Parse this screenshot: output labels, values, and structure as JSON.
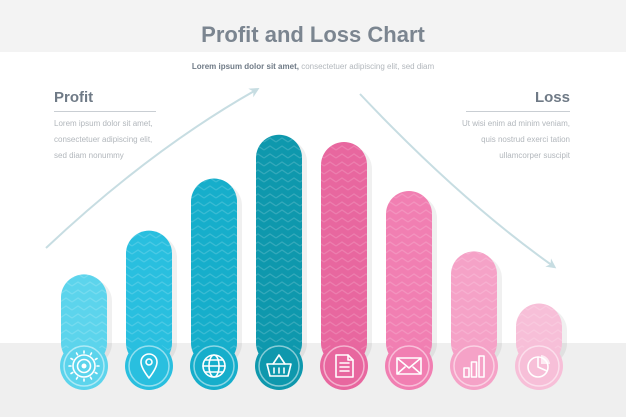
{
  "page": {
    "title": "Profit and Loss Chart",
    "subtitle_bold": "Lorem ipsum dolor sit amet,",
    "subtitle_rest": " consectetuer adipiscing elit, sed diam",
    "profit": {
      "heading": "Profit",
      "lines": [
        "Lorem ipsum dolor sit amet,",
        "consectetuer adipiscing elit,",
        "sed diam nonummy"
      ]
    },
    "loss": {
      "heading": "Loss",
      "lines": [
        "Ut wisi enim ad minim veniam,",
        "quis nostrud exerci tation",
        "ullamcorper suscipit"
      ]
    }
  },
  "colors": {
    "profit": [
      "#5cd4ec",
      "#29bfdf",
      "#16aecb",
      "#0e98ad"
    ],
    "loss": [
      "#e8679f",
      "#f17fb2",
      "#f5a2c7",
      "#f7bfd8"
    ],
    "arrow": "#c7dde2",
    "heading": "#7b8590"
  },
  "icons": [
    "target-icon",
    "location-pin-icon",
    "globe-icon",
    "shopping-basket-icon",
    "document-icon",
    "envelope-icon",
    "bar-chart-icon",
    "pie-chart-icon"
  ],
  "chart_data": {
    "type": "bar",
    "categories": [
      "target",
      "location",
      "globe",
      "basket",
      "document",
      "envelope",
      "bar chart",
      "pie chart"
    ],
    "series": [
      {
        "name": "Profit",
        "values": [
          88,
          130,
          180,
          222,
          null,
          null,
          null,
          null
        ]
      },
      {
        "name": "Loss",
        "values": [
          null,
          null,
          null,
          null,
          215,
          168,
          110,
          60
        ]
      }
    ],
    "xlabel": "",
    "ylabel": "",
    "ylim": [
      0,
      240
    ],
    "grid": false,
    "legend": "none"
  }
}
